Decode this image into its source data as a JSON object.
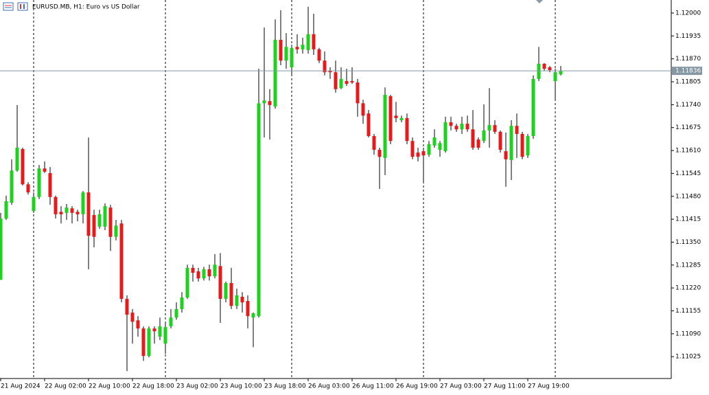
{
  "chart_data": {
    "type": "candlestick",
    "title": "EURUSD.MB, H1:  Euro vs US Dollar",
    "categories": [
      "21 Aug 2024",
      null,
      null,
      null,
      null,
      null,
      null,
      null,
      "22 Aug 02:00",
      null,
      null,
      null,
      null,
      null,
      null,
      null,
      "22 Aug 10:00",
      null,
      null,
      null,
      null,
      null,
      null,
      null,
      "22 Aug 18:00",
      null,
      null,
      null,
      null,
      null,
      null,
      null,
      "23 Aug 02:00",
      null,
      null,
      null,
      null,
      null,
      null,
      null,
      "23 Aug 10:00",
      null,
      null,
      null,
      null,
      null,
      null,
      null,
      "23 Aug 18:00",
      null,
      null,
      null,
      null,
      null,
      null,
      null,
      "26 Aug 03:00",
      null,
      null,
      null,
      null,
      null,
      null,
      null,
      "26 Aug 11:00",
      null,
      null,
      null,
      null,
      null,
      null,
      null,
      "26 Aug 19:00",
      null,
      null,
      null,
      null,
      null,
      null,
      null,
      "27 Aug 03:00",
      null,
      null,
      null,
      null,
      null,
      null,
      null,
      "27 Aug 11:00",
      null,
      null,
      null,
      null,
      null,
      null,
      null,
      "27 Aug 19:00",
      null,
      null,
      null,
      null,
      null,
      null
    ],
    "open": [
      1.11243,
      1.11417,
      1.11462,
      1.11553,
      1.11614,
      1.11514,
      1.11438,
      1.11478,
      1.11559,
      1.11546,
      1.11478,
      1.11436,
      1.11433,
      1.11446,
      1.11436,
      1.11429,
      1.11491,
      1.11427,
      1.11394,
      1.11394,
      1.11448,
      1.11365,
      1.11403,
      1.11189,
      1.1115,
      1.11128,
      1.11105,
      1.11027,
      1.11105,
      1.11082,
      1.11062,
      1.11111,
      1.11136,
      1.1116,
      1.11193,
      1.11277,
      1.11267,
      1.11247,
      1.11273,
      1.11253,
      1.11282,
      1.11189,
      1.11234,
      1.11169,
      1.11195,
      1.11183,
      1.11136,
      1.1114,
      1.11744,
      1.1175,
      1.11735,
      1.11924,
      1.11865,
      1.11846,
      1.11904,
      1.11897,
      1.11895,
      1.1194,
      1.11897,
      1.11865,
      1.11836,
      1.11832,
      1.11787,
      1.11807,
      1.11807,
      1.11803,
      1.11744,
      1.11715,
      1.11651,
      1.11612,
      1.11589,
      1.11764,
      1.11709,
      1.11696,
      1.11702,
      1.11637,
      1.11604,
      1.11608,
      1.11598,
      1.11624,
      1.11612,
      1.11608,
      1.1169,
      1.1168,
      1.1167,
      1.11686,
      1.1167,
      1.11641,
      1.11637,
      1.11667,
      1.11682,
      1.11663,
      1.11608,
      1.11583,
      1.1168,
      1.11657,
      1.11596,
      1.11651,
      1.11813,
      1.11856,
      1.11846,
      1.11807,
      1.11826
    ],
    "high": [
      1.11433,
      1.11482,
      1.11585,
      1.11739,
      1.11618,
      1.1152,
      1.11491,
      1.11569,
      1.11579,
      1.11563,
      1.11482,
      1.11452,
      1.11458,
      1.11452,
      1.11442,
      1.11495,
      1.11647,
      1.11442,
      1.11442,
      1.1146,
      1.11456,
      1.11413,
      1.11413,
      1.11199,
      1.1116,
      1.1114,
      1.11111,
      1.11111,
      1.11111,
      1.11136,
      1.11124,
      1.1116,
      1.11179,
      1.11208,
      1.11286,
      1.11286,
      1.11277,
      1.1128,
      1.11286,
      1.11316,
      1.11319,
      1.11238,
      1.11277,
      1.11218,
      1.11208,
      1.11199,
      1.1115,
      1.11842,
      1.11959,
      1.11784,
      1.11982,
      1.12008,
      1.11943,
      1.1191,
      1.1194,
      1.1193,
      1.12018,
      1.11998,
      1.11901,
      1.11891,
      1.11846,
      1.11865,
      1.11846,
      1.11842,
      1.11846,
      1.11813,
      1.11754,
      1.11725,
      1.11657,
      1.11618,
      1.11789,
      1.11768,
      1.11748,
      1.11709,
      1.11715,
      1.11647,
      1.11618,
      1.11618,
      1.11637,
      1.1167,
      1.11637,
      1.11706,
      1.11706,
      1.11686,
      1.11706,
      1.11709,
      1.11725,
      1.11647,
      1.11741,
      1.11787,
      1.11696,
      1.11667,
      1.11661,
      1.11696,
      1.11715,
      1.11663,
      1.11657,
      1.11823,
      1.11904,
      1.11858,
      1.1185,
      1.11842,
      1.1185
    ],
    "low": [
      1.11243,
      1.11413,
      1.11456,
      1.1155,
      1.11511,
      1.11485,
      1.11433,
      1.11472,
      1.11546,
      1.11456,
      1.11417,
      1.11403,
      1.11413,
      1.11403,
      1.11409,
      1.11403,
      1.11273,
      1.11335,
      1.11388,
      1.11384,
      1.11325,
      1.11355,
      1.11179,
      1.10984,
      1.11062,
      1.11082,
      1.11013,
      1.11023,
      1.11062,
      1.11072,
      1.11033,
      1.11105,
      1.1113,
      1.1115,
      1.11189,
      1.11238,
      1.11238,
      1.11241,
      1.11241,
      1.11247,
      1.11121,
      1.11179,
      1.1116,
      1.1116,
      1.1115,
      1.11105,
      1.11052,
      1.11136,
      1.11647,
      1.11641,
      1.11729,
      1.11852,
      1.11842,
      1.11826,
      1.11885,
      1.11885,
      1.11885,
      1.11881,
      1.11858,
      1.11823,
      1.11813,
      1.11774,
      1.11784,
      1.11793,
      1.11799,
      1.11706,
      1.11686,
      1.11647,
      1.11598,
      1.11501,
      1.1154,
      1.11628,
      1.1169,
      1.1169,
      1.11628,
      1.11585,
      1.11579,
      1.1152,
      1.11592,
      1.11618,
      1.11592,
      1.11604,
      1.11667,
      1.11663,
      1.11657,
      1.11663,
      1.11612,
      1.11612,
      1.11631,
      1.11618,
      1.11657,
      1.11604,
      1.11507,
      1.11526,
      1.11589,
      1.11585,
      1.11589,
      1.11643,
      1.11807,
      1.11836,
      1.11832,
      1.11754,
      1.11823
    ],
    "close": [
      1.11417,
      1.11466,
      1.11553,
      1.11618,
      1.11514,
      1.11491,
      1.11478,
      1.11559,
      1.1155,
      1.11478,
      1.11429,
      1.11429,
      1.11448,
      1.11433,
      1.11429,
      1.11491,
      1.11368,
      1.11365,
      1.11429,
      1.11452,
      1.11365,
      1.11397,
      1.11189,
      1.11144,
      1.11124,
      1.11105,
      1.11027,
      1.11105,
      1.11097,
      1.11111,
      1.11109,
      1.11136,
      1.1116,
      1.11193,
      1.11277,
      1.11263,
      1.11247,
      1.11273,
      1.11253,
      1.11286,
      1.11189,
      1.11234,
      1.11169,
      1.11199,
      1.11179,
      1.1114,
      1.11148,
      1.11744,
      1.11752,
      1.11739,
      1.11924,
      1.11865,
      1.11904,
      1.11901,
      1.11897,
      1.1191,
      1.1194,
      1.11897,
      1.11865,
      1.11832,
      1.11832,
      1.11784,
      1.11813,
      1.11799,
      1.11803,
      1.11744,
      1.11709,
      1.11651,
      1.11612,
      1.11592,
      1.11768,
      1.11637,
      1.11702,
      1.11702,
      1.11637,
      1.11592,
      1.11592,
      1.11596,
      1.11628,
      1.11647,
      1.11631,
      1.1169,
      1.1168,
      1.1167,
      1.11686,
      1.1167,
      1.11618,
      1.11618,
      1.11667,
      1.11682,
      1.11663,
      1.11612,
      1.11585,
      1.1168,
      1.11657,
      1.11592,
      1.11651,
      1.11813,
      1.11856,
      1.11842,
      1.11838,
      1.11832,
      1.11836
    ],
    "up_color": "#1fd11f",
    "down_color": "#e31b1b",
    "ylim": [
      1.10963,
      1.12037
    ],
    "yticks": [
      {
        "value": 1.12,
        "label": "1.12000"
      },
      1.11935,
      {
        "value": 1.1187,
        "label": "1.11870"
      },
      1.11805,
      {
        "value": 1.1174,
        "label": "1.11740"
      },
      1.11675,
      {
        "value": 1.1161,
        "label": "1.11610"
      },
      1.11545,
      {
        "value": 1.1148,
        "label": "1.11480"
      },
      1.11415,
      {
        "value": 1.1135,
        "label": "1.11350"
      },
      1.11285,
      {
        "value": 1.1122,
        "label": "1.11220"
      },
      1.11155,
      {
        "value": 1.1109,
        "label": "1.11090"
      },
      1.11025
    ],
    "current_price": 1.11836,
    "current_price_color": "#8497a3"
  }
}
